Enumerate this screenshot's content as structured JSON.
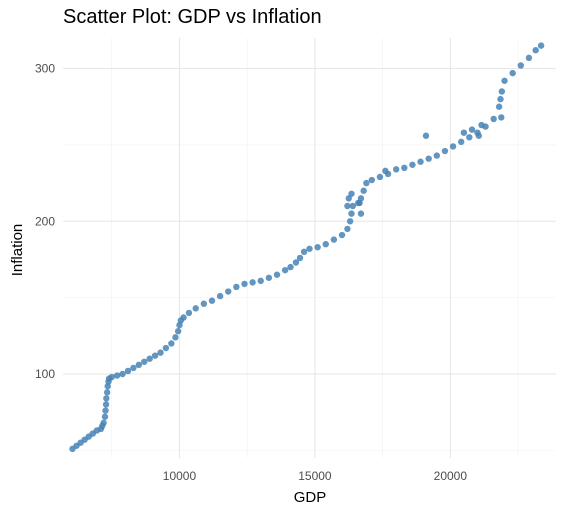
{
  "chart_data": {
    "type": "scatter",
    "title": "Scatter Plot: GDP vs Inflation",
    "xlabel": "GDP",
    "ylabel": "Inflation",
    "xlim": [
      5700,
      23900
    ],
    "ylim": [
      45,
      320
    ],
    "xticks": [
      10000,
      15000,
      20000
    ],
    "yticks": [
      100,
      200,
      300
    ],
    "xtick_labels": [
      "10000",
      "15000",
      "20000"
    ],
    "ytick_labels": [
      "100",
      "200",
      "300"
    ],
    "grid": true,
    "point_color": "#4682B4",
    "series": [
      {
        "points": [
          [
            6050,
            51
          ],
          [
            6200,
            53
          ],
          [
            6350,
            55
          ],
          [
            6500,
            57
          ],
          [
            6650,
            59
          ],
          [
            6800,
            61
          ],
          [
            6950,
            63
          ],
          [
            7100,
            64
          ],
          [
            7150,
            66
          ],
          [
            7200,
            68
          ],
          [
            7250,
            72
          ],
          [
            7270,
            76
          ],
          [
            7290,
            80
          ],
          [
            7300,
            84
          ],
          [
            7330,
            88
          ],
          [
            7350,
            92
          ],
          [
            7380,
            95
          ],
          [
            7400,
            97
          ],
          [
            7500,
            98
          ],
          [
            7700,
            99
          ],
          [
            7900,
            100
          ],
          [
            8100,
            102
          ],
          [
            8300,
            104
          ],
          [
            8500,
            106
          ],
          [
            8700,
            108
          ],
          [
            8900,
            110
          ],
          [
            9100,
            112
          ],
          [
            9300,
            114
          ],
          [
            9500,
            117
          ],
          [
            9700,
            120
          ],
          [
            9850,
            124
          ],
          [
            9950,
            128
          ],
          [
            10000,
            132
          ],
          [
            10050,
            135
          ],
          [
            10150,
            137
          ],
          [
            10350,
            140
          ],
          [
            10600,
            143
          ],
          [
            10900,
            146
          ],
          [
            11200,
            148
          ],
          [
            11500,
            151
          ],
          [
            11800,
            154
          ],
          [
            12100,
            157
          ],
          [
            12400,
            159
          ],
          [
            12700,
            160
          ],
          [
            13000,
            161
          ],
          [
            13300,
            163
          ],
          [
            13600,
            165
          ],
          [
            13900,
            168
          ],
          [
            14100,
            170
          ],
          [
            14300,
            173
          ],
          [
            14450,
            176
          ],
          [
            14600,
            180
          ],
          [
            14800,
            182
          ],
          [
            15100,
            183
          ],
          [
            15400,
            185
          ],
          [
            15700,
            188
          ],
          [
            16000,
            191
          ],
          [
            16200,
            195
          ],
          [
            16300,
            200
          ],
          [
            16350,
            205
          ],
          [
            16400,
            210
          ],
          [
            16600,
            212
          ],
          [
            16700,
            215
          ],
          [
            16800,
            220
          ],
          [
            16900,
            225
          ],
          [
            17100,
            227
          ],
          [
            17400,
            229
          ],
          [
            17700,
            231
          ],
          [
            18000,
            234
          ],
          [
            18300,
            235
          ],
          [
            18600,
            237
          ],
          [
            18900,
            239
          ],
          [
            19200,
            241
          ],
          [
            19500,
            243
          ],
          [
            19800,
            246
          ],
          [
            20100,
            249
          ],
          [
            20400,
            252
          ],
          [
            20700,
            255
          ],
          [
            21000,
            258
          ],
          [
            21300,
            262
          ],
          [
            21600,
            267
          ],
          [
            21800,
            275
          ],
          [
            21900,
            285
          ],
          [
            22000,
            292
          ],
          [
            22300,
            297
          ],
          [
            22600,
            302
          ],
          [
            22900,
            307
          ],
          [
            23150,
            312
          ],
          [
            23350,
            315
          ],
          [
            16200,
            210
          ],
          [
            16250,
            215
          ],
          [
            16350,
            218
          ],
          [
            16700,
            205
          ],
          [
            16650,
            212
          ],
          [
            17600,
            233
          ],
          [
            19100,
            256
          ],
          [
            20500,
            258
          ],
          [
            20800,
            260
          ],
          [
            21050,
            256
          ],
          [
            21150,
            263
          ],
          [
            21850,
            280
          ],
          [
            21880,
            268
          ]
        ]
      }
    ]
  }
}
